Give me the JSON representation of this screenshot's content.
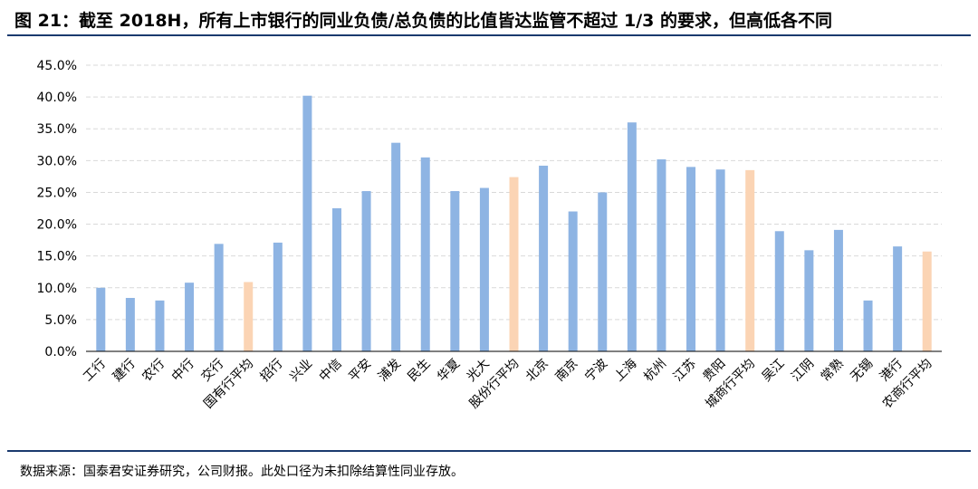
{
  "title": "图 21：截至 2018H，所有上市银行的同业负债/总负债的比值皆达监管不超过 1/3 的要求，但高低各不同",
  "source": "数据来源：国泰君安证券研究，公司财报。此处口径为未扣除结算性同业存放。",
  "colors": {
    "bank": "#8eb4e3",
    "average": "#fbd4b4",
    "grid": "#d9d9d9",
    "axis": "#000000",
    "rule": "#1a3a6e"
  },
  "chart_data": {
    "type": "bar",
    "categories": [
      "工行",
      "建行",
      "农行",
      "中行",
      "交行",
      "国有行平均",
      "招行",
      "兴业",
      "中信",
      "平安",
      "浦发",
      "民生",
      "华夏",
      "光大",
      "股份行平均",
      "北京",
      "南京",
      "宁波",
      "上海",
      "杭州",
      "江苏",
      "贵阳",
      "城商行平均",
      "吴江",
      "江阴",
      "常熟",
      "无锡",
      "港行",
      "农商行平均"
    ],
    "values": [
      10.0,
      8.4,
      8.0,
      10.8,
      16.9,
      10.9,
      17.1,
      40.2,
      22.5,
      25.2,
      32.8,
      30.5,
      25.2,
      25.7,
      27.4,
      29.2,
      22.0,
      25.0,
      36.0,
      30.2,
      29.0,
      28.6,
      28.5,
      18.9,
      15.9,
      19.1,
      8.0,
      16.5,
      15.7
    ],
    "average_flags": [
      false,
      false,
      false,
      false,
      false,
      true,
      false,
      false,
      false,
      false,
      false,
      false,
      false,
      false,
      true,
      false,
      false,
      false,
      false,
      false,
      false,
      false,
      true,
      false,
      false,
      false,
      false,
      false,
      true
    ],
    "ylim": [
      0,
      45
    ],
    "yticks": [
      0,
      5,
      10,
      15,
      20,
      25,
      30,
      35,
      40,
      45
    ],
    "ytick_labels": [
      "0.0%",
      "5.0%",
      "10.0%",
      "15.0%",
      "20.0%",
      "25.0%",
      "30.0%",
      "35.0%",
      "40.0%",
      "45.0%"
    ],
    "grid": true,
    "legend": "none"
  }
}
